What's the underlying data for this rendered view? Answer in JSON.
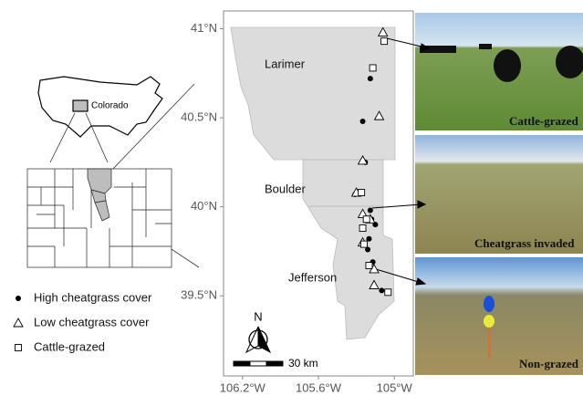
{
  "map": {
    "xlim": [
      -106.35,
      -104.85
    ],
    "ylim": [
      39.05,
      41.1
    ],
    "xticks": [
      {
        "value": -106.2,
        "label": "106.2°W"
      },
      {
        "value": -105.6,
        "label": "105.6°W"
      },
      {
        "value": -105,
        "label": "105°W"
      }
    ],
    "yticks": [
      {
        "value": 41,
        "label": "41°N"
      },
      {
        "value": 40.5,
        "label": "40.5°N"
      },
      {
        "value": 40,
        "label": "40°N"
      },
      {
        "value": 39.5,
        "label": "39.5°N"
      }
    ],
    "counties": [
      "Larimer",
      "Boulder",
      "Jefferson"
    ],
    "north": "N",
    "scale": "30 km",
    "sites": [
      {
        "name": "High cheatgrass cover",
        "marker": "circle",
        "lon": [
          -105.19,
          -105.25,
          -105.23,
          -105.31,
          -105.19,
          -105.18,
          -105.15,
          -105.2,
          -105.21,
          -105.17,
          -105.1
        ],
        "lat": [
          40.72,
          40.48,
          40.25,
          40.07,
          39.98,
          39.93,
          39.9,
          39.82,
          39.76,
          39.69,
          39.53
        ]
      },
      {
        "name": "Low cheatgrass cover",
        "marker": "triangle",
        "lon": [
          -105.09,
          -105.12,
          -105.25,
          -105.3,
          -105.25,
          -105.19,
          -105.25,
          -105.16,
          -105.16
        ],
        "lat": [
          40.98,
          40.51,
          40.26,
          40.08,
          39.96,
          39.93,
          39.8,
          39.65,
          39.56
        ]
      },
      {
        "name": "Cattle-grazed",
        "marker": "square",
        "lon": [
          -105.08,
          -105.17,
          -105.26,
          -105.22,
          -105.25,
          -105.24,
          -105.2,
          -105.05
        ],
        "lat": [
          40.93,
          40.78,
          40.08,
          39.93,
          39.88,
          39.79,
          39.67,
          39.52
        ]
      }
    ]
  },
  "inset": {
    "state": "Colorado"
  },
  "photos": [
    "Cattle-grazed",
    "Cheatgrass invaded",
    "Non-grazed"
  ]
}
